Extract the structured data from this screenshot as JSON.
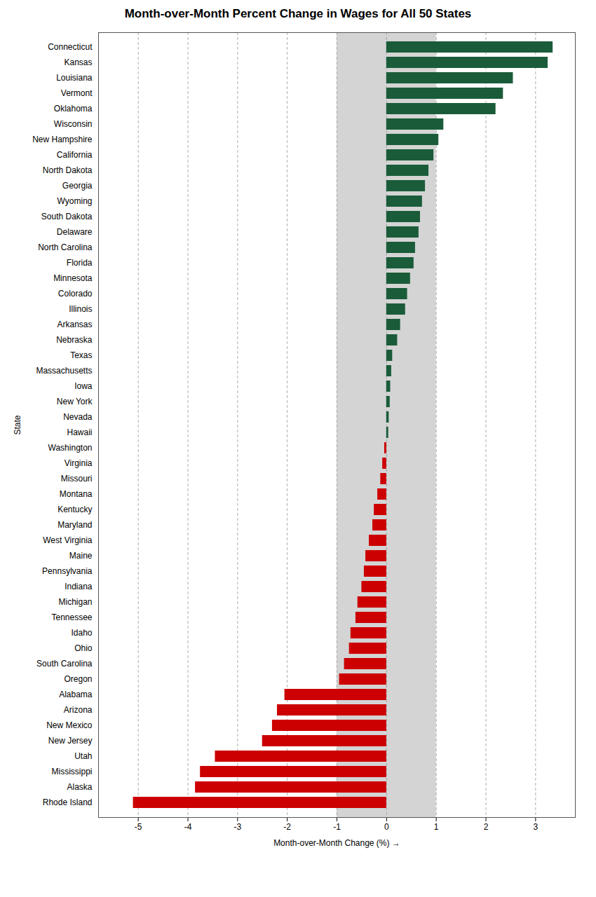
{
  "chart_data": {
    "type": "bar",
    "orientation": "horizontal",
    "title": "Month-over-Month Percent Change in Wages for All 50 States",
    "xlabel": "Month-over-Month Change (%)",
    "ylabel": "State",
    "categories": [
      "Connecticut",
      "Kansas",
      "Louisiana",
      "Vermont",
      "Oklahoma",
      "Wisconsin",
      "New Hampshire",
      "California",
      "North Dakota",
      "Georgia",
      "Wyoming",
      "South Dakota",
      "Delaware",
      "North Carolina",
      "Florida",
      "Minnesota",
      "Colorado",
      "Illinois",
      "Arkansas",
      "Nebraska",
      "Texas",
      "Massachusetts",
      "Iowa",
      "New York",
      "Nevada",
      "Hawaii",
      "Washington",
      "Virginia",
      "Missouri",
      "Montana",
      "Kentucky",
      "Maryland",
      "West Virginia",
      "Maine",
      "Pennsylvania",
      "Indiana",
      "Michigan",
      "Tennessee",
      "Idaho",
      "Ohio",
      "South Carolina",
      "Oregon",
      "Alabama",
      "Arizona",
      "New Mexico",
      "New Jersey",
      "Utah",
      "Mississippi",
      "Alaska",
      "Rhode Island"
    ],
    "values": [
      3.35,
      3.25,
      2.55,
      2.35,
      2.2,
      1.15,
      1.05,
      0.95,
      0.85,
      0.78,
      0.72,
      0.68,
      0.65,
      0.58,
      0.55,
      0.48,
      0.42,
      0.38,
      0.28,
      0.22,
      0.12,
      0.1,
      0.08,
      0.07,
      0.05,
      0.04,
      -0.04,
      -0.08,
      -0.12,
      -0.18,
      -0.25,
      -0.28,
      -0.35,
      -0.42,
      -0.45,
      -0.5,
      -0.58,
      -0.62,
      -0.72,
      -0.75,
      -0.85,
      -0.95,
      -2.05,
      -2.2,
      -2.3,
      -2.5,
      -3.45,
      -3.75,
      -3.85,
      -5.1
    ],
    "colors": [
      "#1a5c3a",
      "#1a5c3a",
      "#1a5c3a",
      "#1a5c3a",
      "#1a5c3a",
      "#1a5c3a",
      "#1a5c3a",
      "#1a5c3a",
      "#1a5c3a",
      "#1a5c3a",
      "#1a5c3a",
      "#1a5c3a",
      "#1a5c3a",
      "#1a5c3a",
      "#1a5c3a",
      "#1a5c3a",
      "#1a5c3a",
      "#1a5c3a",
      "#1a5c3a",
      "#1a5c3a",
      "#1a5c3a",
      "#1a5c3a",
      "#1a5c3a",
      "#1a5c3a",
      "#1a5c3a",
      "#1a5c3a",
      "#cc0000",
      "#cc0000",
      "#cc0000",
      "#cc0000",
      "#cc0000",
      "#cc0000",
      "#cc0000",
      "#cc0000",
      "#cc0000",
      "#cc0000",
      "#cc0000",
      "#cc0000",
      "#cc0000",
      "#cc0000",
      "#cc0000",
      "#cc0000",
      "#cc0000",
      "#cc0000",
      "#cc0000",
      "#cc0000",
      "#cc0000",
      "#cc0000",
      "#cc0000",
      "#cc0000"
    ],
    "shaded_span": {
      "x": [
        -1.0,
        1.0
      ],
      "color": "#d4d4d4"
    },
    "xlim": [
      -5.8,
      3.8
    ],
    "xticks": [
      -5,
      -4,
      -3,
      -2,
      -1,
      0,
      1,
      2,
      3
    ],
    "grid": true
  }
}
